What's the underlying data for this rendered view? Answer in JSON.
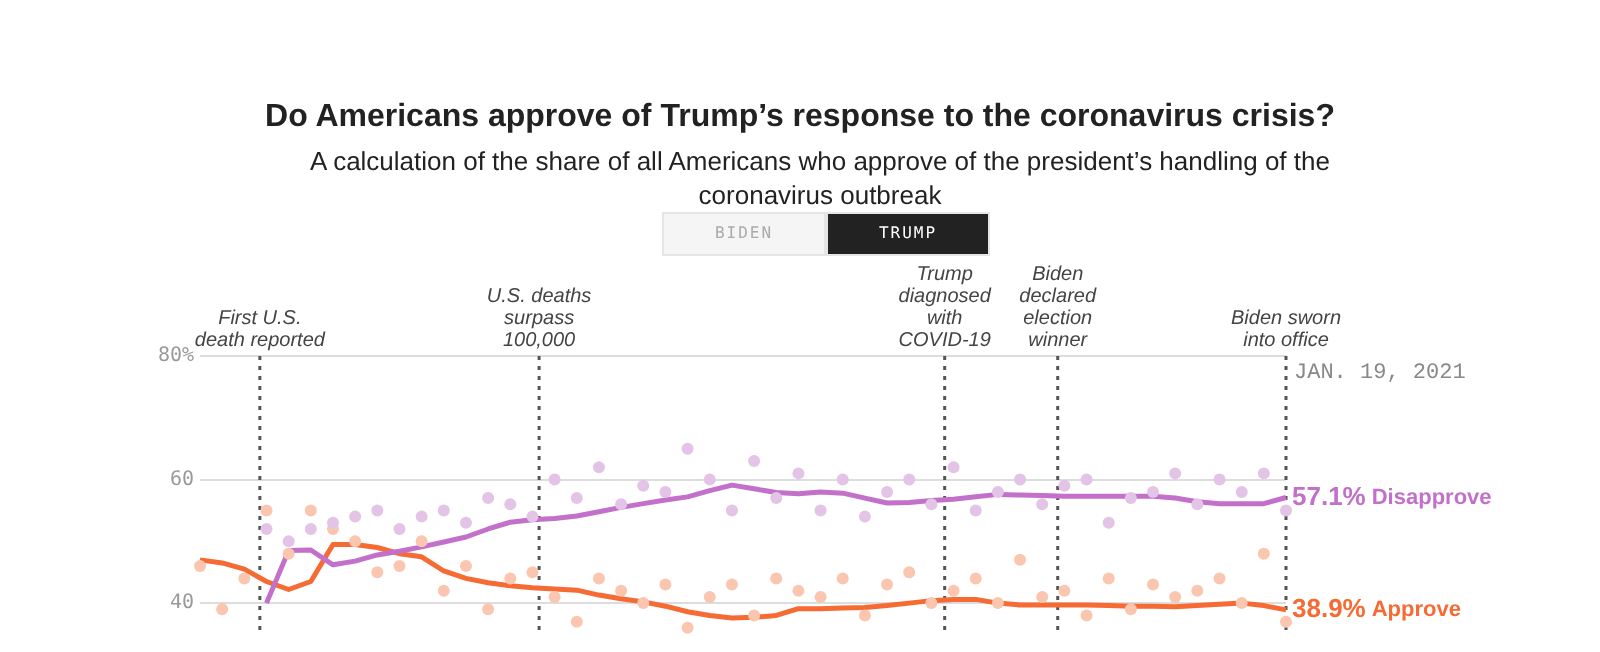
{
  "chart_data": {
    "type": "line",
    "title": "Do Americans approve of Trump’s response to the coronavirus crisis?",
    "subtitle": "A calculation of the share of all Americans who approve of the president’s handling of the coronavirus outbreak",
    "annotations": [
      "BIDEN",
      "TRUMP",
      "First U.S. death reported",
      "U.S. deaths surpass 100,000",
      "Trump diagnosed with COVID-19",
      "Biden declared election winner",
      "Biden sworn into office",
      "JAN. 19, 2021"
    ],
    "categories": [
      null,
      null,
      null,
      null,
      null,
      null,
      null,
      null,
      null,
      null,
      null,
      null,
      null,
      null,
      null,
      null,
      null,
      null,
      null,
      null,
      null,
      null,
      null,
      null,
      null,
      null,
      null,
      null,
      null,
      null,
      null,
      null,
      null,
      null,
      null,
      null,
      null,
      null,
      null,
      null,
      null,
      null,
      null,
      null,
      null,
      null,
      null,
      null,
      null,
      null
    ],
    "ylim": [
      35,
      80
    ],
    "yticks": [
      40,
      60,
      {
        "value": 80,
        "label": "80%"
      }
    ],
    "tick_labels": "y",
    "grid": "y",
    "series": [
      {
        "type": "scatter",
        "marker": "circle",
        "color": "#e3c3e6",
        "values": [
          null,
          null,
          null,
          52,
          50,
          52,
          53,
          54,
          55,
          52,
          54,
          55,
          53,
          57,
          56,
          54,
          60,
          57,
          62,
          56,
          59,
          58,
          65,
          60,
          55,
          63,
          57,
          61,
          55,
          60,
          54,
          58,
          60,
          56,
          62,
          55,
          58,
          60,
          56,
          59,
          60,
          53,
          57,
          58,
          61,
          56,
          60,
          58,
          61,
          55
        ]
      },
      {
        "type": "scatter",
        "marker": "circle",
        "color": "#fbc6b0",
        "values": [
          46,
          39,
          44,
          55,
          48,
          55,
          52,
          50,
          45,
          46,
          50,
          42,
          46,
          39,
          44,
          45,
          41,
          37,
          44,
          42,
          40,
          43,
          36,
          41,
          43,
          38,
          44,
          42,
          41,
          44,
          38,
          43,
          45,
          40,
          42,
          44,
          40,
          47,
          41,
          42,
          38,
          44,
          39,
          43,
          41,
          42,
          44,
          40,
          48,
          37
        ]
      },
      {
        "name": "Disapprove",
        "color": "#c270c9",
        "marker": "none",
        "values": [
          null,
          null,
          null,
          40,
          48.5,
          48.6,
          46.2,
          46.8,
          47.8,
          48.4,
          49.1,
          49.9,
          50.7,
          52,
          53.1,
          53.5,
          53.7,
          54.1,
          54.8,
          55.5,
          56.1,
          56.7,
          57.2,
          58.2,
          59.1,
          58.5,
          57.9,
          57.7,
          58,
          57.8,
          57,
          56.2,
          56.3,
          56.6,
          56.8,
          57.2,
          57.6,
          57.5,
          57.4,
          57.3,
          57.3,
          57.3,
          57.3,
          57.3,
          57,
          56.4,
          56.1,
          56.1,
          56.1,
          57.1
        ],
        "value_labels": [
          null,
          null,
          null,
          null,
          null,
          null,
          null,
          null,
          null,
          null,
          null,
          null,
          null,
          null,
          null,
          null,
          null,
          null,
          null,
          null,
          null,
          null,
          null,
          null,
          null,
          null,
          null,
          null,
          null,
          null,
          null,
          null,
          null,
          null,
          null,
          null,
          null,
          null,
          null,
          null,
          null,
          null,
          null,
          null,
          null,
          null,
          null,
          null,
          null,
          "57.1%"
        ]
      },
      {
        "name": "Approve",
        "color": "#f66a34",
        "marker": "none",
        "values": [
          47,
          46.5,
          45.5,
          43.5,
          42.2,
          43.5,
          49.5,
          49.5,
          49,
          48,
          47.5,
          45.2,
          44,
          43.3,
          42.8,
          42.5,
          42.3,
          42.1,
          41.3,
          40.7,
          40.2,
          39.5,
          38.6,
          38,
          37.6,
          37.7,
          38,
          39.1,
          39.1,
          39.2,
          39.3,
          39.6,
          40,
          40.4,
          40.6,
          40.6,
          40,
          39.7,
          39.7,
          39.7,
          39.7,
          39.6,
          39.5,
          39.5,
          39.4,
          39.6,
          39.8,
          40,
          39.6,
          38.9
        ],
        "value_labels": [
          null,
          null,
          null,
          null,
          null,
          null,
          null,
          null,
          null,
          null,
          null,
          null,
          null,
          null,
          null,
          null,
          null,
          null,
          null,
          null,
          null,
          null,
          null,
          null,
          null,
          null,
          null,
          null,
          null,
          null,
          null,
          null,
          null,
          null,
          null,
          null,
          null,
          null,
          null,
          null,
          null,
          null,
          null,
          null,
          null,
          null,
          null,
          null,
          null,
          "38.9%"
        ]
      }
    ]
  }
}
